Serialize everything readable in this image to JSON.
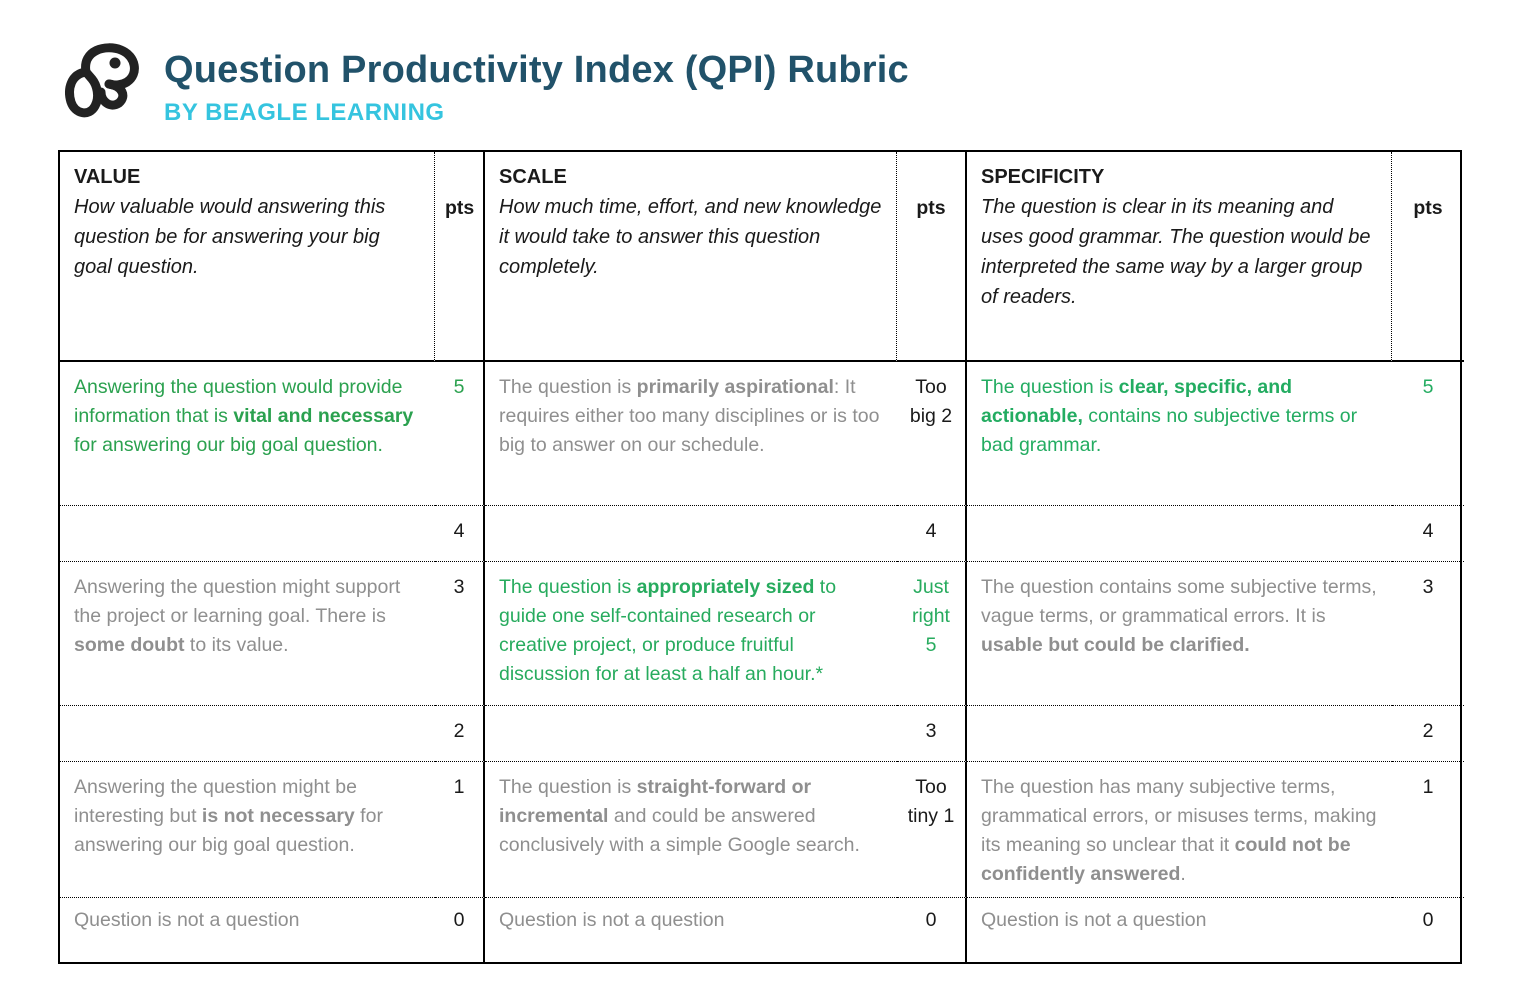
{
  "header": {
    "title": "Question Productivity Index (QPI) Rubric",
    "subtitle": "BY BEAGLE LEARNING",
    "logo": "beagle-dog-icon"
  },
  "colors": {
    "title_navy": "#21526A",
    "brand_cyan": "#35C4DF",
    "green_value": "#2BA14F",
    "green_scale": "#27AB5E",
    "green_spec": "#23AC61",
    "gray_text": "#8F8F8F",
    "black_text": "#1A1A1A",
    "border_black": "#000000"
  },
  "table": {
    "columns": [
      {
        "name": "VALUE",
        "description": "How valuable would answering this question be for answering your big goal question.",
        "pts_label": "pts"
      },
      {
        "name": "SCALE",
        "description": "How much time, effort, and new knowledge it would take to answer this question completely.",
        "pts_label": "pts"
      },
      {
        "name": "SPECIFICITY",
        "description": "The question is clear in its meaning and uses good grammar. The question would be interpreted the same way by a larger group of readers.",
        "pts_label": "pts"
      }
    ],
    "rows": [
      {
        "cells": [
          {
            "segments": [
              {
                "t": "Answering the question would provide information that is "
              },
              {
                "t": "vital and necessary",
                "b": true
              },
              {
                "t": " for answering our big goal question."
              }
            ],
            "color": "green-value",
            "pts": "5",
            "pts_color": "green-value"
          },
          {
            "segments": [
              {
                "t": "The question is "
              },
              {
                "t": "primarily aspirational",
                "b": true
              },
              {
                "t": ": It requires either too many disciplines or is too big to answer on our schedule."
              }
            ],
            "color": "gray",
            "pts": "Too big 2",
            "pts_color": "black"
          },
          {
            "segments": [
              {
                "t": "The question is "
              },
              {
                "t": "clear, specific, and actionable,",
                "b": true
              },
              {
                "t": " contains no subjective terms or bad grammar."
              }
            ],
            "color": "green-spec",
            "pts": "5",
            "pts_color": "green-spec"
          }
        ]
      },
      {
        "cells": [
          {
            "segments": [],
            "color": "black",
            "pts": "4",
            "pts_color": "black"
          },
          {
            "segments": [],
            "color": "black",
            "pts": "4",
            "pts_color": "black"
          },
          {
            "segments": [],
            "color": "black",
            "pts": "4",
            "pts_color": "black"
          }
        ]
      },
      {
        "cells": [
          {
            "segments": [
              {
                "t": "Answering the question might support the project or learning goal. There is "
              },
              {
                "t": "some doubt",
                "b": true
              },
              {
                "t": " to its value."
              }
            ],
            "color": "gray",
            "pts": "3",
            "pts_color": "black"
          },
          {
            "segments": [
              {
                "t": "The question is "
              },
              {
                "t": "appropriately sized",
                "b": true
              },
              {
                "t": " to guide one self-contained research or creative project, or produce fruitful discussion for at least a half an hour.*"
              }
            ],
            "color": "green-scale",
            "pts": "Just right 5",
            "pts_color": "green-scale"
          },
          {
            "segments": [
              {
                "t": "The question contains some subjective terms, vague terms, or grammatical errors. It is "
              },
              {
                "t": "usable but could be clarified.",
                "b": true
              }
            ],
            "color": "gray",
            "pts": "3",
            "pts_color": "black"
          }
        ]
      },
      {
        "cells": [
          {
            "segments": [],
            "color": "black",
            "pts": "2",
            "pts_color": "black"
          },
          {
            "segments": [],
            "color": "black",
            "pts": "3",
            "pts_color": "black"
          },
          {
            "segments": [],
            "color": "black",
            "pts": "2",
            "pts_color": "black"
          }
        ]
      },
      {
        "cells": [
          {
            "segments": [
              {
                "t": "Answering the question might be interesting but "
              },
              {
                "t": "is not necessary",
                "b": true
              },
              {
                "t": " for answering our big goal question."
              }
            ],
            "color": "gray",
            "pts": "1",
            "pts_color": "black"
          },
          {
            "segments": [
              {
                "t": "The question is "
              },
              {
                "t": "straight-forward or incremental",
                "b": true
              },
              {
                "t": " and could be answered conclusively with a simple Google search."
              }
            ],
            "color": "gray",
            "pts": "Too tiny 1",
            "pts_color": "black"
          },
          {
            "segments": [
              {
                "t": "The question has many subjective terms, grammatical errors, or misuses terms, making its meaning so unclear that it "
              },
              {
                "t": "could not be confidently answered",
                "b": true
              },
              {
                "t": "."
              }
            ],
            "color": "gray",
            "pts": "1",
            "pts_color": "black"
          }
        ]
      },
      {
        "cells": [
          {
            "segments": [
              {
                "t": "Question is not a question"
              }
            ],
            "color": "gray",
            "pts": "0",
            "pts_color": "black"
          },
          {
            "segments": [
              {
                "t": "Question is not a question"
              }
            ],
            "color": "gray",
            "pts": "0",
            "pts_color": "black"
          },
          {
            "segments": [
              {
                "t": "Question is not a question"
              }
            ],
            "color": "gray",
            "pts": "0",
            "pts_color": "black"
          }
        ]
      }
    ]
  }
}
